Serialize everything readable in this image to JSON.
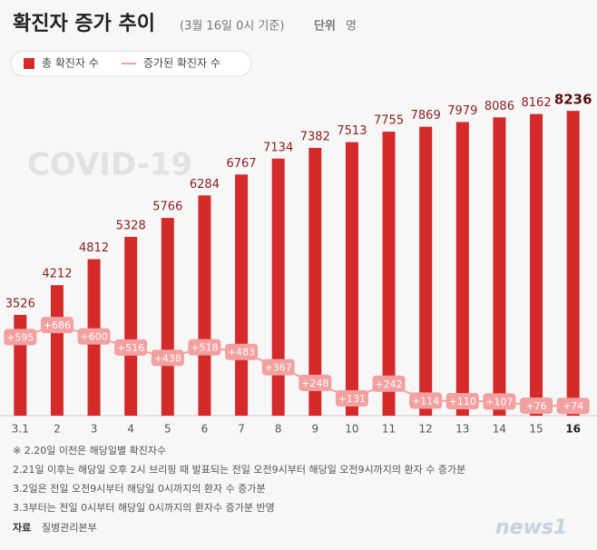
{
  "chart_data": {
    "type": "bar",
    "title": "확진자 증가 추이",
    "subtitle": "(3월 16일 0시 기준)",
    "unit_label": "단위",
    "unit": "명",
    "watermark": "COVID-19",
    "categories": [
      "3.1",
      "2",
      "3",
      "4",
      "5",
      "6",
      "7",
      "8",
      "9",
      "10",
      "11",
      "12",
      "13",
      "14",
      "15",
      "16"
    ],
    "series": [
      {
        "name": "총 확진자 수",
        "type": "bar",
        "color": "#d42a2a",
        "values": [
          3526,
          4212,
          4812,
          5328,
          5766,
          6284,
          6767,
          7134,
          7382,
          7513,
          7755,
          7869,
          7979,
          8086,
          8162,
          8236
        ]
      },
      {
        "name": "증가된 확진자 수",
        "type": "line",
        "axis": "y2",
        "color": "#f2a0a0",
        "values": [
          595,
          686,
          600,
          516,
          438,
          518,
          483,
          367,
          248,
          131,
          242,
          114,
          110,
          107,
          76,
          74
        ],
        "value_labels": [
          "+595",
          "+686",
          "+600",
          "+516",
          "+438",
          "+518",
          "+483",
          "+367",
          "+248",
          "+131",
          "+242",
          "+114",
          "+110",
          "+107",
          "+76",
          "+74"
        ]
      }
    ],
    "ylim": [
      1200,
      8700
    ],
    "y2lim": [
      0,
      2460
    ],
    "notes": [
      "※ 2.20일 이전은 해당일별 확진자수",
      "2.21일 이후는 해당일 오후 2시 브리핑 때 발표되는 전일 오전9시부터 해당일 오전9시까지의 환자 수 증가분",
      "3.2일은 전일 오전9시부터 해당일 0시까지의 환자 수 증가분",
      "3.3부터는 전일 0시부터 해당일 0시까지의 환자수 증가분 반영"
    ],
    "source_label": "자료",
    "source": "질병관리본부",
    "logo": "news1"
  }
}
